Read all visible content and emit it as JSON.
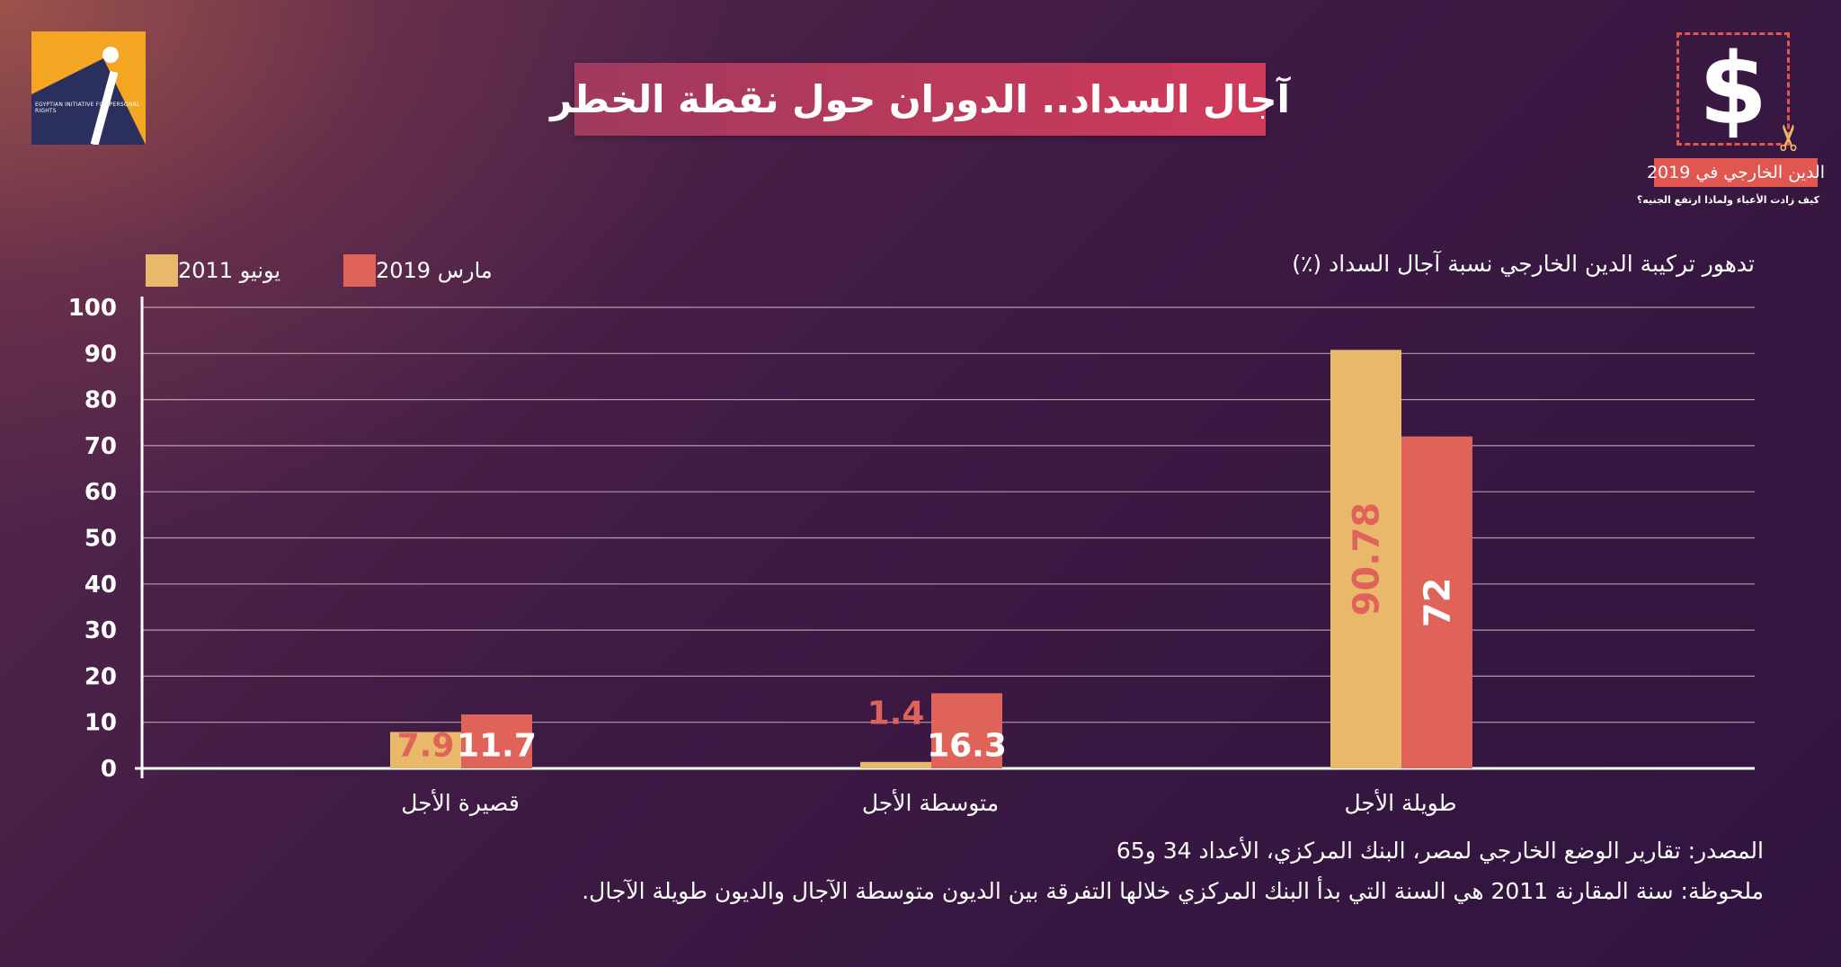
{
  "header": {
    "title": "آجال السداد.. الدوران حول نقطة الخطر",
    "left_logo_text": "EGYPTIAN INITIATIVE FOR PERSONAL RIGHTS",
    "right_logo": {
      "badge": "الدين الخارجي في 2019",
      "subtitle": "كيف زادت الأعباء ولماذا  ارتفع الجنيه؟",
      "symbol": "$"
    }
  },
  "colors": {
    "yunio_2011": "#e8b96b",
    "mars_2019": "#e0635a",
    "title_bg": "#c8385a"
  },
  "chart_data": {
    "type": "bar",
    "title": "تدهور تركيبة الدين الخارجي نسبة آجال السداد (٪)",
    "categories": [
      "قصيرة الأجل",
      "متوسطة الأجل",
      "طويلة الأجل"
    ],
    "series": [
      {
        "name": "يونيو 2011",
        "values": [
          7.9,
          1.4,
          90.78
        ],
        "labels": [
          "7.9",
          "1.4",
          "90.78"
        ]
      },
      {
        "name": "مارس 2019",
        "values": [
          11.7,
          16.3,
          72
        ],
        "labels": [
          "11.7",
          "16.3",
          "72"
        ]
      }
    ],
    "ylim": [
      0,
      100
    ],
    "yticks": [
      "0",
      "10",
      "20",
      "30",
      "40",
      "50",
      "60",
      "70",
      "80",
      "90",
      "100"
    ],
    "grid": true,
    "legend": "top-left"
  },
  "notes": {
    "source": "المصدر: تقارير الوضع الخارجي لمصر، البنك المركزي، الأعداد 34 و65",
    "note": "ملحوظة: سنة المقارنة 2011 هي السنة التي بدأ البنك المركزي خلالها التفرقة بين الديون متوسطة الآجال والديون طويلة الآجال."
  }
}
